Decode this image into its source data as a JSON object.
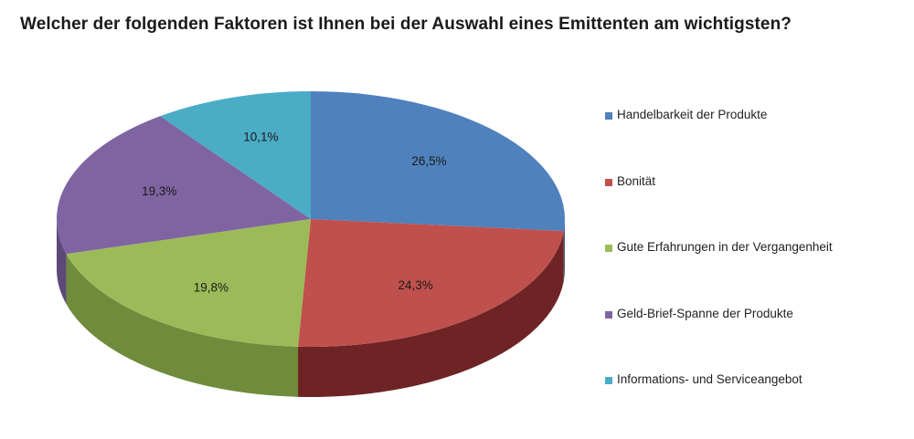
{
  "chart_data": {
    "type": "pie",
    "title": "Welcher der folgenden Faktoren ist Ihnen bei der Auswahl eines Emittenten am wichtigsten?",
    "categories": [
      "Handelbarkeit der Produkte",
      "Bonität",
      "Gute Erfahrungen in der Vergangenheit",
      "Geld-Brief-Spanne der Produkte",
      "Informations- und Serviceangebot"
    ],
    "values": [
      26.5,
      24.3,
      19.8,
      19.3,
      10.1
    ],
    "value_labels": [
      "26,5%",
      "24,3%",
      "19,8%",
      "19,3%",
      "10,1%"
    ],
    "colors": [
      "#4f81bd",
      "#c0504d",
      "#9bbb59",
      "#8064a2",
      "#4bacc6"
    ],
    "side_colors": [
      "#3a6190",
      "#6e2424",
      "#6f8c3c",
      "#5d4878",
      "#35859a"
    ],
    "legend_position": "right",
    "style": "3d-tilted"
  }
}
